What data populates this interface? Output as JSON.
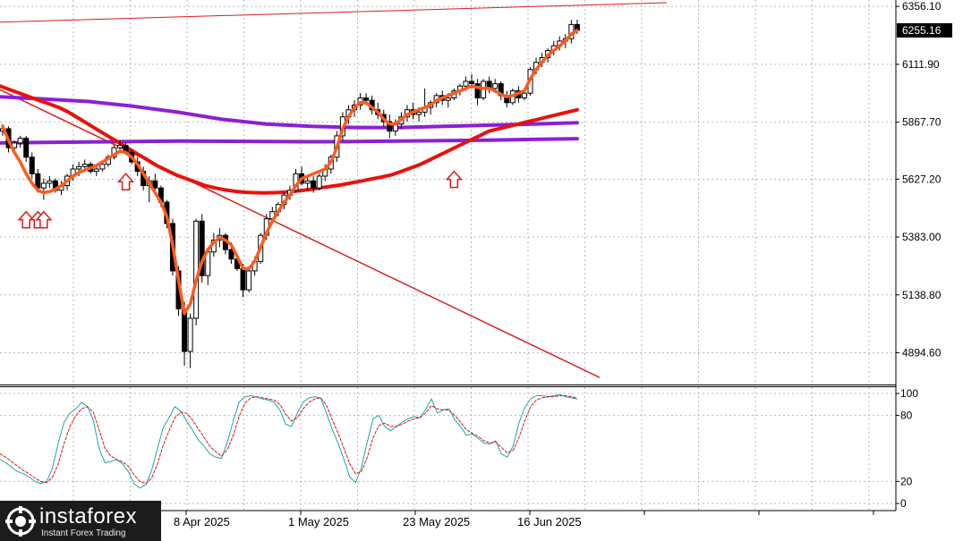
{
  "chart_data": [
    {
      "type": "candlestick",
      "title": "",
      "y_ticks": [
        6356.1,
        6111.9,
        5867.7,
        5627.2,
        5383.0,
        5138.8,
        4894.6
      ],
      "y_tick_labels": [
        "6356.10",
        "6111.90",
        "5867.70",
        "5627.20",
        "5383.00",
        "5138.80",
        "4894.60"
      ],
      "ylim": [
        4768,
        6372
      ],
      "current_price": 6255.16,
      "current_price_label": "6255.16",
      "x_labels": [
        "8 Apr 2025",
        "1 May 2025",
        "23 May 2025",
        "16 Jun 2025"
      ],
      "grid": true,
      "candles": [
        {
          "o": 5830,
          "h": 5860,
          "l": 5810,
          "c": 5840
        },
        {
          "o": 5840,
          "h": 5850,
          "l": 5740,
          "c": 5760
        },
        {
          "o": 5760,
          "h": 5790,
          "l": 5740,
          "c": 5780
        },
        {
          "o": 5780,
          "h": 5810,
          "l": 5760,
          "c": 5800
        },
        {
          "o": 5800,
          "h": 5810,
          "l": 5700,
          "c": 5720
        },
        {
          "o": 5720,
          "h": 5740,
          "l": 5630,
          "c": 5650
        },
        {
          "o": 5650,
          "h": 5670,
          "l": 5570,
          "c": 5590
        },
        {
          "o": 5590,
          "h": 5630,
          "l": 5540,
          "c": 5610
        },
        {
          "o": 5610,
          "h": 5640,
          "l": 5590,
          "c": 5620
        },
        {
          "o": 5620,
          "h": 5630,
          "l": 5570,
          "c": 5580
        },
        {
          "o": 5580,
          "h": 5620,
          "l": 5560,
          "c": 5600
        },
        {
          "o": 5600,
          "h": 5650,
          "l": 5580,
          "c": 5640
        },
        {
          "o": 5640,
          "h": 5690,
          "l": 5620,
          "c": 5670
        },
        {
          "o": 5670,
          "h": 5700,
          "l": 5640,
          "c": 5680
        },
        {
          "o": 5680,
          "h": 5710,
          "l": 5660,
          "c": 5690
        },
        {
          "o": 5690,
          "h": 5700,
          "l": 5650,
          "c": 5660
        },
        {
          "o": 5660,
          "h": 5690,
          "l": 5640,
          "c": 5670
        },
        {
          "o": 5670,
          "h": 5700,
          "l": 5660,
          "c": 5690
        },
        {
          "o": 5690,
          "h": 5730,
          "l": 5680,
          "c": 5720
        },
        {
          "o": 5720,
          "h": 5770,
          "l": 5710,
          "c": 5760
        },
        {
          "o": 5760,
          "h": 5790,
          "l": 5740,
          "c": 5770
        },
        {
          "o": 5770,
          "h": 5780,
          "l": 5730,
          "c": 5740
        },
        {
          "o": 5740,
          "h": 5750,
          "l": 5690,
          "c": 5700
        },
        {
          "o": 5700,
          "h": 5720,
          "l": 5640,
          "c": 5660
        },
        {
          "o": 5660,
          "h": 5680,
          "l": 5580,
          "c": 5600
        },
        {
          "o": 5600,
          "h": 5640,
          "l": 5530,
          "c": 5620
        },
        {
          "o": 5620,
          "h": 5650,
          "l": 5570,
          "c": 5590
        },
        {
          "o": 5590,
          "h": 5600,
          "l": 5510,
          "c": 5530
        },
        {
          "o": 5530,
          "h": 5540,
          "l": 5420,
          "c": 5440
        },
        {
          "o": 5440,
          "h": 5460,
          "l": 5220,
          "c": 5240
        },
        {
          "o": 5240,
          "h": 5260,
          "l": 5050,
          "c": 5080
        },
        {
          "o": 5080,
          "h": 5110,
          "l": 4840,
          "c": 4900
        },
        {
          "o": 4900,
          "h": 5060,
          "l": 4830,
          "c": 5040
        },
        {
          "o": 5040,
          "h": 5460,
          "l": 5010,
          "c": 5450
        },
        {
          "o": 5450,
          "h": 5480,
          "l": 5190,
          "c": 5220
        },
        {
          "o": 5220,
          "h": 5330,
          "l": 5180,
          "c": 5320
        },
        {
          "o": 5320,
          "h": 5400,
          "l": 5300,
          "c": 5370
        },
        {
          "o": 5370,
          "h": 5420,
          "l": 5340,
          "c": 5390
        },
        {
          "o": 5390,
          "h": 5400,
          "l": 5310,
          "c": 5330
        },
        {
          "o": 5330,
          "h": 5360,
          "l": 5270,
          "c": 5290
        },
        {
          "o": 5290,
          "h": 5310,
          "l": 5240,
          "c": 5250
        },
        {
          "o": 5250,
          "h": 5270,
          "l": 5130,
          "c": 5160
        },
        {
          "o": 5160,
          "h": 5260,
          "l": 5150,
          "c": 5240
        },
        {
          "o": 5240,
          "h": 5300,
          "l": 5220,
          "c": 5280
        },
        {
          "o": 5280,
          "h": 5400,
          "l": 5270,
          "c": 5390
        },
        {
          "o": 5390,
          "h": 5480,
          "l": 5370,
          "c": 5460
        },
        {
          "o": 5460,
          "h": 5510,
          "l": 5440,
          "c": 5490
        },
        {
          "o": 5490,
          "h": 5530,
          "l": 5470,
          "c": 5520
        },
        {
          "o": 5520,
          "h": 5570,
          "l": 5500,
          "c": 5560
        },
        {
          "o": 5560,
          "h": 5600,
          "l": 5540,
          "c": 5580
        },
        {
          "o": 5580,
          "h": 5670,
          "l": 5570,
          "c": 5650
        },
        {
          "o": 5650,
          "h": 5680,
          "l": 5600,
          "c": 5610
        },
        {
          "o": 5610,
          "h": 5640,
          "l": 5580,
          "c": 5620
        },
        {
          "o": 5620,
          "h": 5640,
          "l": 5570,
          "c": 5590
        },
        {
          "o": 5590,
          "h": 5650,
          "l": 5580,
          "c": 5640
        },
        {
          "o": 5640,
          "h": 5690,
          "l": 5620,
          "c": 5670
        },
        {
          "o": 5670,
          "h": 5730,
          "l": 5650,
          "c": 5720
        },
        {
          "o": 5720,
          "h": 5830,
          "l": 5700,
          "c": 5810
        },
        {
          "o": 5810,
          "h": 5910,
          "l": 5790,
          "c": 5890
        },
        {
          "o": 5890,
          "h": 5940,
          "l": 5860,
          "c": 5920
        },
        {
          "o": 5920,
          "h": 5960,
          "l": 5890,
          "c": 5940
        },
        {
          "o": 5940,
          "h": 5990,
          "l": 5920,
          "c": 5970
        },
        {
          "o": 5970,
          "h": 5990,
          "l": 5940,
          "c": 5960
        },
        {
          "o": 5960,
          "h": 5980,
          "l": 5900,
          "c": 5920
        },
        {
          "o": 5920,
          "h": 5950,
          "l": 5880,
          "c": 5900
        },
        {
          "o": 5900,
          "h": 5920,
          "l": 5850,
          "c": 5870
        },
        {
          "o": 5870,
          "h": 5900,
          "l": 5800,
          "c": 5830
        },
        {
          "o": 5830,
          "h": 5880,
          "l": 5810,
          "c": 5860
        },
        {
          "o": 5860,
          "h": 5910,
          "l": 5840,
          "c": 5890
        },
        {
          "o": 5890,
          "h": 5940,
          "l": 5870,
          "c": 5920
        },
        {
          "o": 5920,
          "h": 5950,
          "l": 5880,
          "c": 5900
        },
        {
          "o": 5900,
          "h": 5930,
          "l": 5870,
          "c": 5910
        },
        {
          "o": 5910,
          "h": 6010,
          "l": 5890,
          "c": 5930
        },
        {
          "o": 5930,
          "h": 5960,
          "l": 5900,
          "c": 5950
        },
        {
          "o": 5950,
          "h": 5990,
          "l": 5930,
          "c": 5980
        },
        {
          "o": 5980,
          "h": 6000,
          "l": 5940,
          "c": 5960
        },
        {
          "o": 5960,
          "h": 5990,
          "l": 5930,
          "c": 5970
        },
        {
          "o": 5970,
          "h": 6010,
          "l": 5960,
          "c": 6000
        },
        {
          "o": 6000,
          "h": 6030,
          "l": 5980,
          "c": 6020
        },
        {
          "o": 6020,
          "h": 6060,
          "l": 6000,
          "c": 6040
        },
        {
          "o": 6040,
          "h": 6070,
          "l": 6010,
          "c": 6030
        },
        {
          "o": 6030,
          "h": 6050,
          "l": 5940,
          "c": 5970
        },
        {
          "o": 5970,
          "h": 6050,
          "l": 5960,
          "c": 6040
        },
        {
          "o": 6040,
          "h": 6060,
          "l": 5990,
          "c": 6010
        },
        {
          "o": 6010,
          "h": 6050,
          "l": 5990,
          "c": 6030
        },
        {
          "o": 6030,
          "h": 6040,
          "l": 5960,
          "c": 5980
        },
        {
          "o": 5980,
          "h": 6000,
          "l": 5930,
          "c": 5950
        },
        {
          "o": 5950,
          "h": 6010,
          "l": 5940,
          "c": 6000
        },
        {
          "o": 6000,
          "h": 6020,
          "l": 5950,
          "c": 5970
        },
        {
          "o": 5970,
          "h": 6000,
          "l": 5960,
          "c": 5990
        },
        {
          "o": 5990,
          "h": 6100,
          "l": 5980,
          "c": 6090
        },
        {
          "o": 6090,
          "h": 6140,
          "l": 6070,
          "c": 6120
        },
        {
          "o": 6120,
          "h": 6160,
          "l": 6100,
          "c": 6140
        },
        {
          "o": 6140,
          "h": 6180,
          "l": 6120,
          "c": 6170
        },
        {
          "o": 6170,
          "h": 6210,
          "l": 6150,
          "c": 6190
        },
        {
          "o": 6190,
          "h": 6230,
          "l": 6170,
          "c": 6210
        },
        {
          "o": 6210,
          "h": 6240,
          "l": 6180,
          "c": 6220
        },
        {
          "o": 6220,
          "h": 6300,
          "l": 6200,
          "c": 6280
        },
        {
          "o": 6280,
          "h": 6300,
          "l": 6240,
          "c": 6255.16
        }
      ],
      "ma_fast": [
        5850,
        5790,
        5740,
        5700,
        5650,
        5610,
        5580,
        5570,
        5575,
        5585,
        5600,
        5620,
        5640,
        5655,
        5665,
        5675,
        5685,
        5700,
        5715,
        5730,
        5745,
        5740,
        5720,
        5690,
        5650,
        5610,
        5570,
        5530,
        5470,
        5350,
        5200,
        5060,
        5100,
        5200,
        5280,
        5330,
        5360,
        5380,
        5370,
        5350,
        5300,
        5250,
        5250,
        5280,
        5340,
        5400,
        5450,
        5490,
        5530,
        5560,
        5600,
        5630,
        5640,
        5650,
        5660,
        5670,
        5700,
        5760,
        5840,
        5890,
        5930,
        5950,
        5950,
        5930,
        5910,
        5880,
        5860,
        5860,
        5880,
        5900,
        5910,
        5920,
        5930,
        5940,
        5960,
        5970,
        5980,
        5990,
        6000,
        6010,
        6020,
        6015,
        6010,
        6010,
        6000,
        5985,
        5975,
        5980,
        5990,
        6000,
        6050,
        6090,
        6120,
        6150,
        6170,
        6190,
        6210,
        6240,
        6255
      ],
      "ma_slow": [
        6020,
        6005,
        5990,
        5975,
        5960,
        5945,
        5930,
        5910,
        5885,
        5860,
        5835,
        5810,
        5785,
        5760,
        5735,
        5710,
        5685,
        5665,
        5645,
        5630,
        5615,
        5600,
        5590,
        5582,
        5576,
        5572,
        5570,
        5569,
        5570,
        5572,
        5576,
        5580,
        5586,
        5592,
        5598,
        5604,
        5612,
        5620,
        5628,
        5636,
        5645,
        5660,
        5675,
        5690,
        5710,
        5730,
        5750,
        5770,
        5790,
        5810,
        5830,
        5840,
        5850,
        5860,
        5870,
        5880,
        5890,
        5900,
        5910,
        5920
      ],
      "ma_purple_1": [
        5975,
        5965,
        5955,
        5935,
        5910,
        5880,
        5860,
        5850,
        5845,
        5845,
        5850,
        5855,
        5860,
        5865
      ],
      "ma_purple_2": [
        5780,
        5782,
        5784,
        5786,
        5788,
        5787,
        5786,
        5785,
        5786,
        5788,
        5790,
        5792,
        5795,
        5798
      ],
      "trendline_upper": [
        6290,
        6372
      ],
      "trendline_lower": [
        6005,
        4790
      ]
    },
    {
      "type": "line",
      "title": "",
      "y_ticks": [
        100,
        80,
        20,
        0
      ],
      "y_tick_labels": [
        "100",
        "80",
        "20",
        "0"
      ],
      "ylim": [
        0,
        100
      ],
      "grid": true,
      "series": [
        {
          "values": [
            40,
            37,
            33,
            29,
            27,
            24,
            20,
            18,
            20,
            32,
            55,
            74,
            82,
            86,
            92,
            88,
            76,
            50,
            37,
            38,
            40,
            36,
            29,
            18,
            14,
            17,
            30,
            50,
            69,
            78,
            88,
            84,
            75,
            67,
            58,
            52,
            45,
            42,
            41,
            56,
            75,
            92,
            97,
            98,
            97,
            95,
            94,
            92,
            85,
            72,
            70,
            82,
            92,
            96,
            97,
            96,
            82,
            67,
            55,
            40,
            24,
            19,
            33,
            56,
            77,
            80,
            70,
            66,
            70,
            74,
            77,
            79,
            78,
            85,
            95,
            82,
            85,
            86,
            76,
            70,
            62,
            63,
            59,
            55,
            54,
            57,
            45,
            42,
            52,
            73,
            87,
            95,
            98,
            98,
            97,
            98,
            99,
            97,
            96,
            95
          ]
        },
        {
          "values": [
            45,
            42,
            38,
            34,
            30,
            27,
            23,
            20,
            19,
            24,
            36,
            55,
            70,
            80,
            86,
            88,
            83,
            67,
            50,
            43,
            40,
            38,
            34,
            26,
            20,
            18,
            23,
            36,
            53,
            66,
            78,
            83,
            82,
            76,
            68,
            60,
            52,
            47,
            43,
            49,
            62,
            79,
            91,
            96,
            97,
            96,
            95,
            94,
            90,
            81,
            75,
            78,
            86,
            92,
            95,
            96,
            89,
            76,
            64,
            50,
            36,
            27,
            29,
            42,
            60,
            71,
            73,
            70,
            70,
            72,
            75,
            77,
            78,
            82,
            89,
            86,
            85,
            85,
            80,
            74,
            67,
            64,
            61,
            57,
            55,
            56,
            51,
            46,
            48,
            60,
            75,
            88,
            94,
            96,
            97,
            97,
            98,
            98,
            97,
            96
          ]
        }
      ]
    }
  ],
  "brand": {
    "name": "instaforex",
    "tagline": "Instant Forex Trading",
    "bg_color": "#1c1c1c",
    "text_color": "#ffffff"
  },
  "colors": {
    "candle_up": "#ffffff",
    "candle_down": "#000000",
    "ma_fast": "#ff5a1e",
    "ma_slow": "#e8120c",
    "ma_purple": "#8c1fd6",
    "trendline": "#d81f1f",
    "stoch_main": "#1aa7a7",
    "stoch_signal": "#dd1111",
    "grid": "#b8b8b8",
    "arrow": "#e01818"
  }
}
